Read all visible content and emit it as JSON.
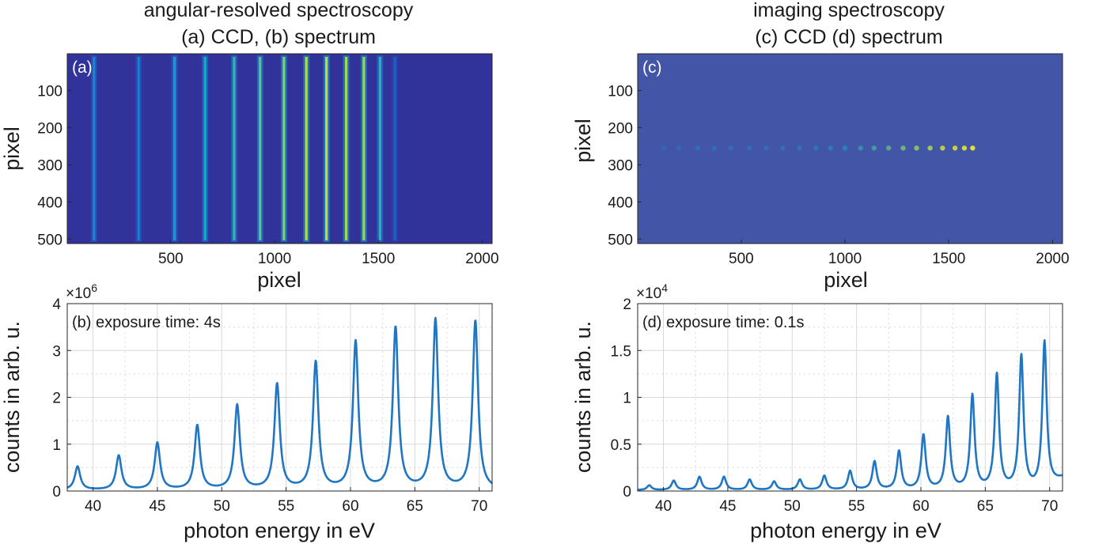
{
  "figure": {
    "left_title_line1": "angular-resolved spectroscopy",
    "left_title_line2": "(a) CCD, (b) spectrum",
    "right_title_line1": "imaging spectroscopy",
    "right_title_line2": "(c) CCD (d) spectrum"
  },
  "colors": {
    "ccd_background_a": "#31329a",
    "ccd_background_c": "#4255a6",
    "line_stroke": "#1f76c2",
    "grid": "#d9d9d9",
    "axis": "#262626"
  },
  "chart_data": [
    {
      "id": "a",
      "type": "heatmap",
      "panel_label": "(a)",
      "xlabel": "pixel",
      "ylabel": "pixel",
      "xlim": [
        1,
        2048
      ],
      "ylim": [
        1,
        512
      ],
      "x_ticks": [
        500,
        1000,
        1500,
        2000
      ],
      "y_ticks": [
        100,
        200,
        300,
        400,
        500
      ],
      "lines": [
        {
          "x": 130,
          "intensity": 0.35
        },
        {
          "x": 345,
          "intensity": 0.3
        },
        {
          "x": 518,
          "intensity": 0.45
        },
        {
          "x": 665,
          "intensity": 0.5
        },
        {
          "x": 805,
          "intensity": 0.58
        },
        {
          "x": 930,
          "intensity": 0.68
        },
        {
          "x": 1045,
          "intensity": 0.78
        },
        {
          "x": 1153,
          "intensity": 0.88
        },
        {
          "x": 1250,
          "intensity": 0.9
        },
        {
          "x": 1345,
          "intensity": 0.85
        },
        {
          "x": 1430,
          "intensity": 0.82
        },
        {
          "x": 1508,
          "intensity": 0.55
        },
        {
          "x": 1580,
          "intensity": 0.18
        }
      ]
    },
    {
      "id": "c",
      "type": "heatmap",
      "panel_label": "(c)",
      "xlabel": "pixel",
      "ylabel": "pixel",
      "xlim": [
        1,
        2048
      ],
      "ylim": [
        1,
        512
      ],
      "x_ticks": [
        500,
        1000,
        1500,
        2000
      ],
      "y_ticks": [
        100,
        200,
        300,
        400,
        500
      ],
      "spot_row": 255,
      "spots": [
        {
          "x": 130,
          "intensity": 0.05
        },
        {
          "x": 200,
          "intensity": 0.08
        },
        {
          "x": 290,
          "intensity": 0.12
        },
        {
          "x": 370,
          "intensity": 0.12
        },
        {
          "x": 450,
          "intensity": 0.14
        },
        {
          "x": 540,
          "intensity": 0.14
        },
        {
          "x": 620,
          "intensity": 0.14
        },
        {
          "x": 700,
          "intensity": 0.15
        },
        {
          "x": 780,
          "intensity": 0.16
        },
        {
          "x": 860,
          "intensity": 0.17
        },
        {
          "x": 930,
          "intensity": 0.22
        },
        {
          "x": 1000,
          "intensity": 0.28
        },
        {
          "x": 1075,
          "intensity": 0.38
        },
        {
          "x": 1140,
          "intensity": 0.48
        },
        {
          "x": 1210,
          "intensity": 0.58
        },
        {
          "x": 1280,
          "intensity": 0.66
        },
        {
          "x": 1345,
          "intensity": 0.74
        },
        {
          "x": 1410,
          "intensity": 0.8
        },
        {
          "x": 1470,
          "intensity": 0.86
        },
        {
          "x": 1530,
          "intensity": 0.9
        },
        {
          "x": 1575,
          "intensity": 0.94
        },
        {
          "x": 1615,
          "intensity": 0.98
        }
      ]
    },
    {
      "id": "b",
      "type": "line",
      "annotation": "(b) exposure time: 4s",
      "xlabel": "photon energy in eV",
      "ylabel": "counts in arb. u.",
      "exponent_label": "×10",
      "exponent_power": "6",
      "xlim": [
        38,
        71
      ],
      "ylim": [
        0,
        4
      ],
      "x_ticks": [
        40,
        45,
        50,
        55,
        60,
        65,
        70
      ],
      "y_ticks": [
        0,
        1,
        2,
        3,
        4
      ],
      "x_minor_grid": [
        42.5,
        47.5,
        52.5,
        57.5,
        62.5,
        67.5
      ],
      "y_minor_grid": [
        0.5,
        1.5,
        2.5,
        3.5
      ],
      "baseline": 0.02,
      "peak_width": 0.25,
      "peaks": [
        {
          "x": 38.8,
          "y": 0.5
        },
        {
          "x": 42.0,
          "y": 0.73
        },
        {
          "x": 45.0,
          "y": 1.0
        },
        {
          "x": 48.1,
          "y": 1.37
        },
        {
          "x": 51.2,
          "y": 1.8
        },
        {
          "x": 54.3,
          "y": 2.25
        },
        {
          "x": 57.3,
          "y": 2.72
        },
        {
          "x": 60.4,
          "y": 3.15
        },
        {
          "x": 63.5,
          "y": 3.45
        },
        {
          "x": 66.6,
          "y": 3.62
        },
        {
          "x": 69.7,
          "y": 3.6
        }
      ]
    },
    {
      "id": "d",
      "type": "line",
      "annotation": "(d) exposure time: 0.1s",
      "xlabel": "photon energy in eV",
      "ylabel": "counts in arb. u.",
      "exponent_label": "×10",
      "exponent_power": "4",
      "xlim": [
        38,
        71
      ],
      "ylim": [
        0,
        2
      ],
      "x_ticks": [
        40,
        45,
        50,
        55,
        60,
        65,
        70
      ],
      "y_ticks": [
        0,
        0.5,
        1,
        1.5,
        2
      ],
      "x_minor_grid": [
        42.5,
        47.5,
        52.5,
        57.5,
        62.5,
        67.5
      ],
      "y_minor_grid": [
        0.25,
        0.75,
        1.25,
        1.75
      ],
      "baseline": 0.01,
      "peak_width": 0.2,
      "peaks": [
        {
          "x": 38.9,
          "y": 0.05
        },
        {
          "x": 40.8,
          "y": 0.1
        },
        {
          "x": 42.8,
          "y": 0.14
        },
        {
          "x": 44.7,
          "y": 0.14
        },
        {
          "x": 46.7,
          "y": 0.11
        },
        {
          "x": 48.6,
          "y": 0.09
        },
        {
          "x": 50.6,
          "y": 0.11
        },
        {
          "x": 52.5,
          "y": 0.15
        },
        {
          "x": 54.5,
          "y": 0.2
        },
        {
          "x": 56.4,
          "y": 0.3
        },
        {
          "x": 58.3,
          "y": 0.41
        },
        {
          "x": 60.2,
          "y": 0.58
        },
        {
          "x": 62.1,
          "y": 0.77
        },
        {
          "x": 64.0,
          "y": 1.0
        },
        {
          "x": 65.9,
          "y": 1.22
        },
        {
          "x": 67.8,
          "y": 1.42
        },
        {
          "x": 69.6,
          "y": 1.57
        }
      ],
      "tail_rise": 0.12
    }
  ]
}
